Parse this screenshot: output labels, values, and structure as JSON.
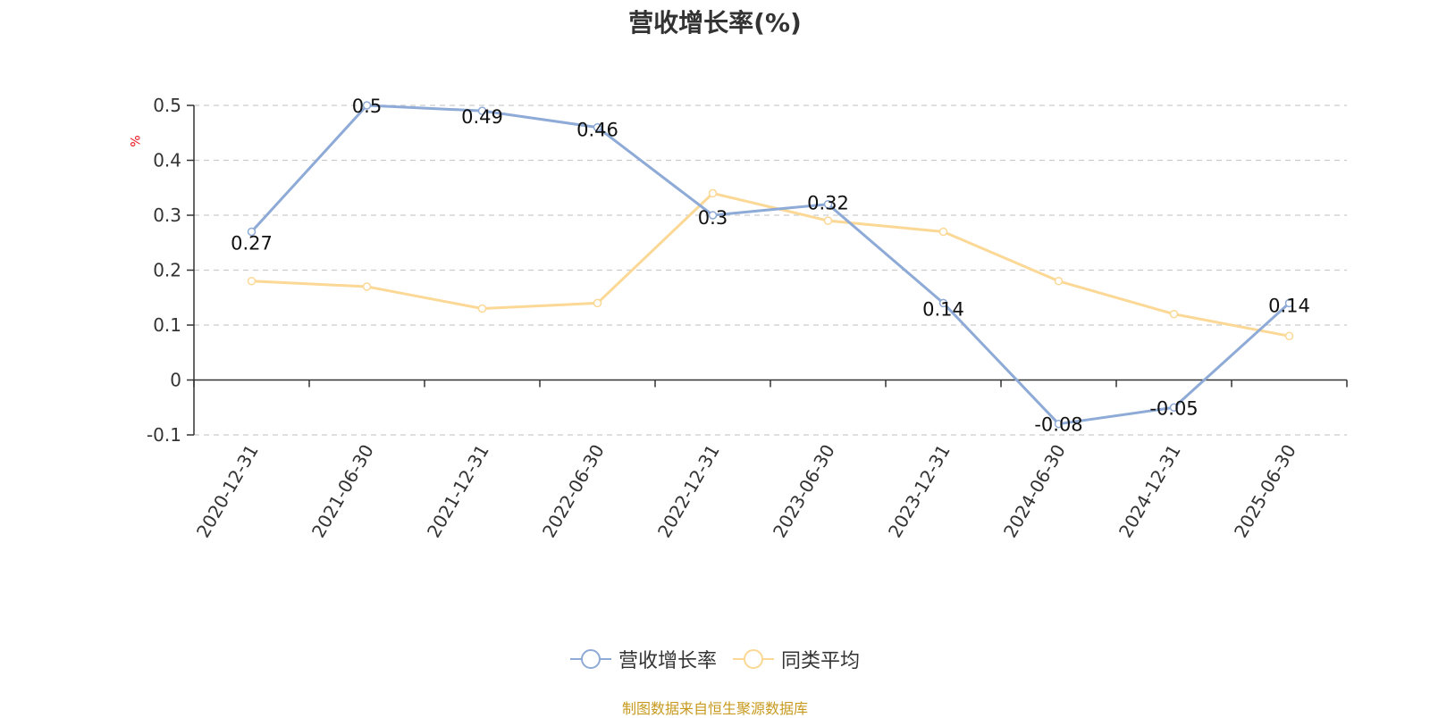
{
  "chart_data": {
    "type": "line",
    "title": "营收增长率(%)",
    "ylabel": "%",
    "xlabel": "",
    "categories": [
      "2020-12-31",
      "2021-06-30",
      "2021-12-31",
      "2022-06-30",
      "2022-12-31",
      "2023-06-30",
      "2023-12-31",
      "2024-06-30",
      "2024-12-31",
      "2025-06-30"
    ],
    "ylim": [
      -0.1,
      0.5
    ],
    "yticks": [
      "-0.1",
      "0",
      "0.1",
      "0.2",
      "0.3",
      "0.4",
      "0.5"
    ],
    "grid": true,
    "legend_position": "bottom",
    "series": [
      {
        "name": "营收增长率",
        "color": "#8eaad6",
        "values": [
          0.27,
          0.5,
          0.49,
          0.46,
          0.3,
          0.32,
          0.14,
          -0.08,
          -0.05,
          0.14
        ],
        "labels": [
          "0.27",
          "0.5",
          "0.49",
          "0.46",
          "0.3",
          "0.32",
          "0.14",
          "-0.08",
          "-0.05",
          "0.14"
        ]
      },
      {
        "name": "同类平均",
        "color": "#fbd895",
        "values": [
          0.18,
          0.17,
          0.13,
          0.14,
          0.34,
          0.29,
          0.27,
          0.18,
          0.12,
          0.08
        ]
      }
    ]
  },
  "source_text": "制图数据来自恒生聚源数据库"
}
